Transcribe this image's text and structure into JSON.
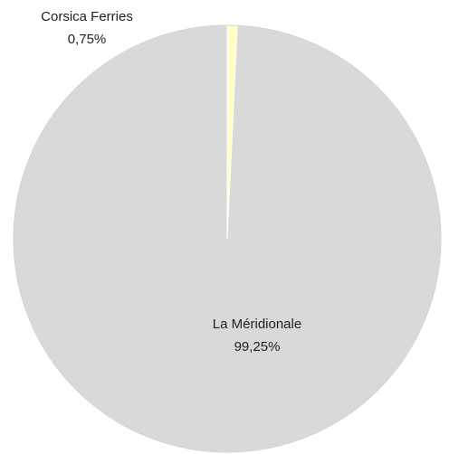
{
  "chart_data": {
    "type": "pie",
    "slices": [
      {
        "label": "La Méridionale",
        "value": 99.25,
        "value_label": "99,25%",
        "color": "#d9d9d9"
      },
      {
        "label": "Corsica Ferries",
        "value": 0.75,
        "value_label": "0,75%",
        "color": "#ffffc8"
      }
    ],
    "start": "top",
    "direction": "clockwise",
    "legend": "none"
  }
}
